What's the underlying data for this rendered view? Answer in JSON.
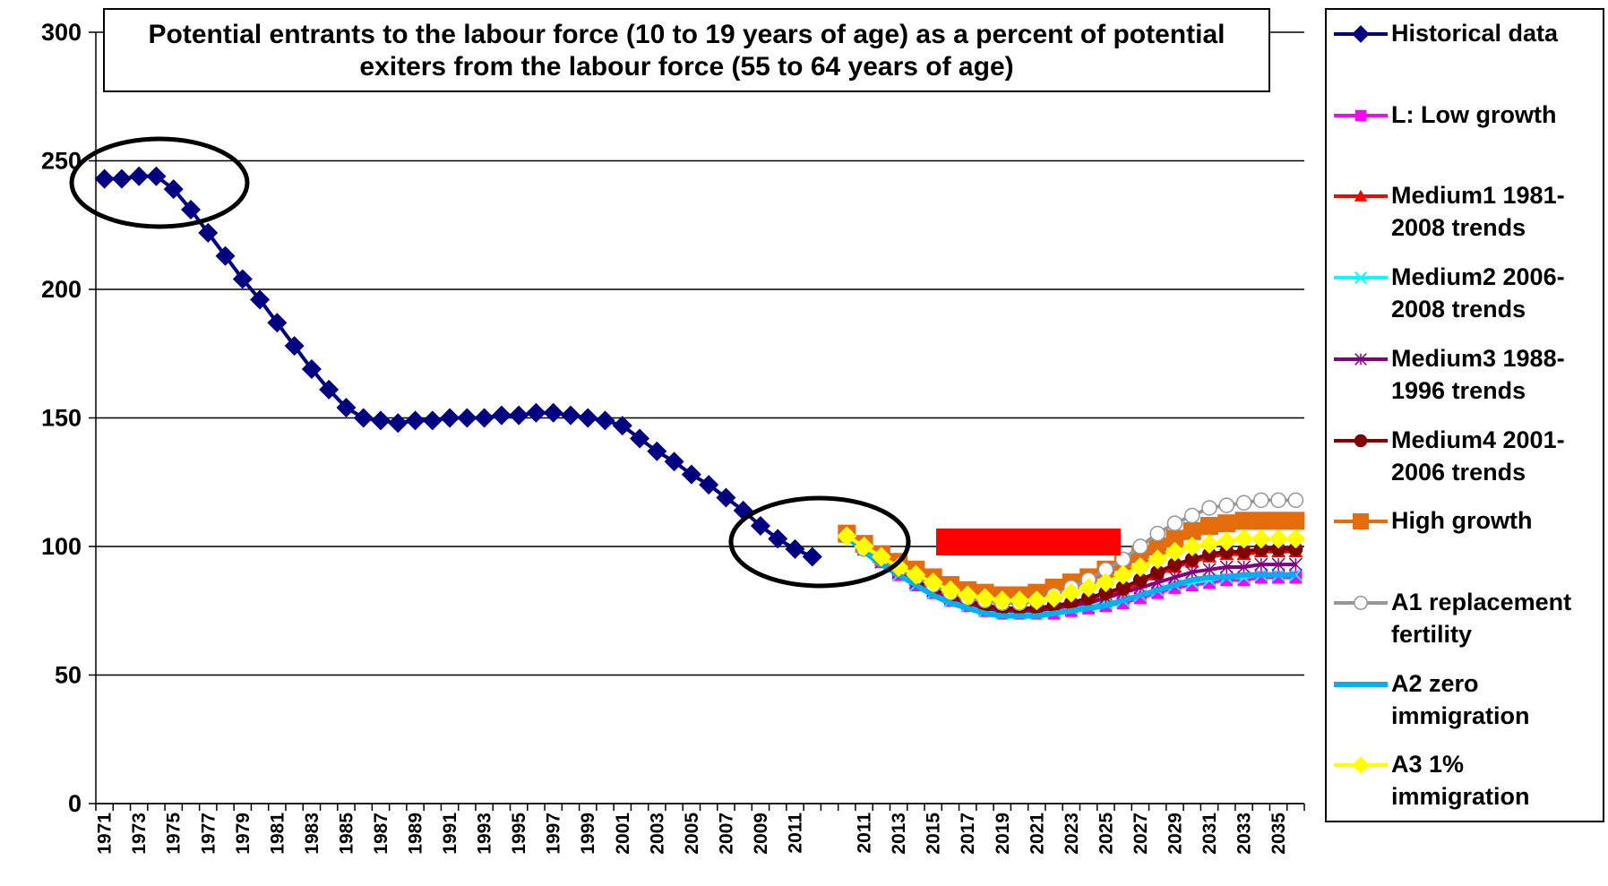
{
  "chart_data": {
    "type": "line",
    "title": "Potential entrants to the labour force (10 to 19 years of age) as a percent of potential exiters from the labour force (55 to 64 years of age)",
    "categories": [
      "1971",
      null,
      "1973",
      null,
      "1975",
      null,
      "1977",
      null,
      "1979",
      null,
      "1981",
      null,
      "1983",
      null,
      "1985",
      null,
      "1987",
      null,
      "1989",
      null,
      "1991",
      null,
      "1993",
      null,
      "1995",
      null,
      "1997",
      null,
      "1999",
      null,
      "2001",
      null,
      "2003",
      null,
      "2005",
      null,
      "2007",
      null,
      "2009",
      null,
      "2011",
      null,
      null,
      null,
      "2011",
      null,
      "2013",
      null,
      "2015",
      null,
      "2017",
      null,
      "2019",
      null,
      "2021",
      null,
      "2023",
      null,
      "2025",
      null,
      "2027",
      null,
      "2029",
      null,
      "2031",
      null,
      "2033",
      null,
      "2035",
      null
    ],
    "ylim": [
      0,
      300
    ],
    "yticks": [
      0,
      50,
      100,
      150,
      200,
      250,
      300
    ],
    "grid": true,
    "legend": "right",
    "series": [
      {
        "name": "Historical data",
        "color": "#000080",
        "marker": "diamond",
        "values": [
          243,
          243,
          244,
          244,
          239,
          231,
          222,
          213,
          204,
          196,
          187,
          178,
          169,
          161,
          154,
          150,
          149,
          148,
          149,
          149,
          150,
          150,
          150,
          151,
          151,
          152,
          152,
          151,
          150,
          149,
          147,
          142,
          137,
          133,
          128,
          124,
          119,
          114,
          108,
          103,
          99,
          96,
          null,
          null,
          null,
          null,
          null,
          null,
          null,
          null,
          null,
          null,
          null,
          null,
          null,
          null,
          null,
          null,
          null,
          null,
          null,
          null,
          null,
          null,
          null,
          null,
          null,
          null,
          null,
          null
        ]
      },
      {
        "name": "L: Low growth",
        "color": "#ff00ff",
        "marker": "square",
        "values": [
          null,
          null,
          null,
          null,
          null,
          null,
          null,
          null,
          null,
          null,
          null,
          null,
          null,
          null,
          null,
          null,
          null,
          null,
          null,
          null,
          null,
          null,
          null,
          null,
          null,
          null,
          null,
          null,
          null,
          null,
          null,
          null,
          null,
          null,
          null,
          null,
          null,
          null,
          null,
          null,
          null,
          null,
          null,
          104,
          99,
          94,
          89,
          85,
          82,
          79,
          77,
          75,
          74,
          74,
          74,
          74,
          75,
          76,
          77,
          78,
          80,
          82,
          84,
          85,
          86,
          87,
          87,
          88,
          88,
          88
        ]
      },
      {
        "name": "Medium1 1981-2008 trends",
        "color": "#ff0000",
        "marker": "triangle",
        "values": [
          null,
          null,
          null,
          null,
          null,
          null,
          null,
          null,
          null,
          null,
          null,
          null,
          null,
          null,
          null,
          null,
          null,
          null,
          null,
          null,
          null,
          null,
          null,
          null,
          null,
          null,
          null,
          null,
          null,
          null,
          null,
          null,
          null,
          null,
          null,
          null,
          null,
          null,
          null,
          null,
          null,
          null,
          null,
          104,
          99,
          95,
          91,
          87,
          84,
          81,
          79,
          77,
          76,
          75,
          75,
          76,
          77,
          79,
          81,
          83,
          86,
          89,
          92,
          94,
          96,
          97,
          97,
          98,
          98,
          98
        ]
      },
      {
        "name": "Medium2 2006-2008 trends",
        "color": "#00ffff",
        "marker": "x",
        "values": [
          null,
          null,
          null,
          null,
          null,
          null,
          null,
          null,
          null,
          null,
          null,
          null,
          null,
          null,
          null,
          null,
          null,
          null,
          null,
          null,
          null,
          null,
          null,
          null,
          null,
          null,
          null,
          null,
          null,
          null,
          null,
          null,
          null,
          null,
          null,
          null,
          null,
          null,
          null,
          null,
          null,
          null,
          null,
          104,
          99,
          94,
          89,
          85,
          82,
          79,
          77,
          75,
          74,
          74,
          74,
          75,
          76,
          77,
          78,
          79,
          81,
          83,
          85,
          86,
          87,
          88,
          88,
          89,
          89,
          89
        ]
      },
      {
        "name": "Medium3 1988-1996 trends",
        "color": "#800080",
        "marker": "star",
        "values": [
          null,
          null,
          null,
          null,
          null,
          null,
          null,
          null,
          null,
          null,
          null,
          null,
          null,
          null,
          null,
          null,
          null,
          null,
          null,
          null,
          null,
          null,
          null,
          null,
          null,
          null,
          null,
          null,
          null,
          null,
          null,
          null,
          null,
          null,
          null,
          null,
          null,
          null,
          null,
          null,
          null,
          null,
          null,
          104,
          99,
          94,
          90,
          86,
          83,
          80,
          78,
          76,
          75,
          75,
          75,
          76,
          77,
          78,
          80,
          82,
          84,
          86,
          88,
          90,
          91,
          92,
          92,
          93,
          93,
          93
        ]
      },
      {
        "name": "Medium4 2001-2006 trends",
        "color": "#800000",
        "marker": "circle",
        "values": [
          null,
          null,
          null,
          null,
          null,
          null,
          null,
          null,
          null,
          null,
          null,
          null,
          null,
          null,
          null,
          null,
          null,
          null,
          null,
          null,
          null,
          null,
          null,
          null,
          null,
          null,
          null,
          null,
          null,
          null,
          null,
          null,
          null,
          null,
          null,
          null,
          null,
          null,
          null,
          null,
          null,
          null,
          null,
          104,
          99,
          95,
          91,
          87,
          84,
          81,
          79,
          77,
          76,
          76,
          76,
          77,
          78,
          80,
          82,
          84,
          87,
          90,
          93,
          95,
          97,
          98,
          98,
          99,
          99,
          99
        ]
      },
      {
        "name": "High growth",
        "color": "#e46c0a",
        "marker": "bigsquare",
        "values": [
          null,
          null,
          null,
          null,
          null,
          null,
          null,
          null,
          null,
          null,
          null,
          null,
          null,
          null,
          null,
          null,
          null,
          null,
          null,
          null,
          null,
          null,
          null,
          null,
          null,
          null,
          null,
          null,
          null,
          null,
          null,
          null,
          null,
          null,
          null,
          null,
          null,
          null,
          null,
          null,
          null,
          null,
          null,
          105,
          101,
          97,
          94,
          91,
          88,
          85,
          83,
          82,
          81,
          81,
          82,
          84,
          86,
          88,
          91,
          94,
          97,
          100,
          103,
          106,
          108,
          109,
          110,
          110,
          110,
          110
        ]
      },
      {
        "name": "A1 replacement fertility",
        "color": "#969696",
        "marker": "opencircle",
        "values": [
          null,
          null,
          null,
          null,
          null,
          null,
          null,
          null,
          null,
          null,
          null,
          null,
          null,
          null,
          null,
          null,
          null,
          null,
          null,
          null,
          null,
          null,
          null,
          null,
          null,
          null,
          null,
          null,
          null,
          null,
          null,
          null,
          null,
          null,
          null,
          null,
          null,
          null,
          null,
          null,
          null,
          null,
          null,
          104,
          99,
          95,
          91,
          88,
          85,
          82,
          80,
          79,
          78,
          78,
          79,
          81,
          84,
          87,
          91,
          95,
          100,
          105,
          109,
          112,
          115,
          116,
          117,
          118,
          118,
          118
        ]
      },
      {
        "name": "A2 zero immigration",
        "color": "#00b0f0",
        "marker": "none",
        "values": [
          null,
          null,
          null,
          null,
          null,
          null,
          null,
          null,
          null,
          null,
          null,
          null,
          null,
          null,
          null,
          null,
          null,
          null,
          null,
          null,
          null,
          null,
          null,
          null,
          null,
          null,
          null,
          null,
          null,
          null,
          null,
          null,
          null,
          null,
          null,
          null,
          null,
          null,
          null,
          null,
          null,
          null,
          null,
          104,
          98,
          93,
          89,
          85,
          81,
          78,
          76,
          74,
          73,
          73,
          73,
          74,
          75,
          76,
          77,
          79,
          81,
          83,
          85,
          87,
          88,
          88,
          89,
          89,
          89,
          89
        ]
      },
      {
        "name": "A3 1% immigration",
        "color": "#ffff00",
        "marker": "diamond",
        "values": [
          null,
          null,
          null,
          null,
          null,
          null,
          null,
          null,
          null,
          null,
          null,
          null,
          null,
          null,
          null,
          null,
          null,
          null,
          null,
          null,
          null,
          null,
          null,
          null,
          null,
          null,
          null,
          null,
          null,
          null,
          null,
          null,
          null,
          null,
          null,
          null,
          null,
          null,
          null,
          null,
          null,
          null,
          null,
          104,
          100,
          96,
          92,
          89,
          86,
          83,
          81,
          80,
          79,
          79,
          79,
          80,
          82,
          84,
          86,
          89,
          92,
          95,
          98,
          100,
          101,
          102,
          103,
          103,
          103,
          103
        ]
      }
    ]
  }
}
